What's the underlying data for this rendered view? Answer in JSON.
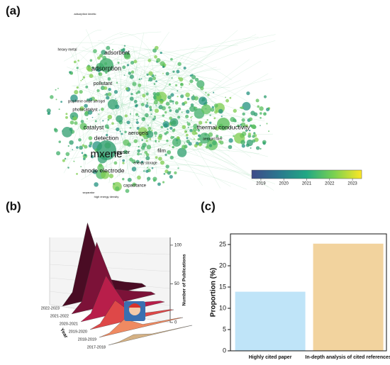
{
  "chart_data": [
    {
      "type": "network",
      "panel": "(a)",
      "node_labels": [
        "mxene",
        "adsorption",
        "adsorbent",
        "pollutant",
        "photocatalyst",
        "graphene oxide aerogel",
        "catalyst",
        "detection",
        "sensor",
        "aerogels",
        "film",
        "energy storage",
        "anode electrode",
        "capacitance",
        "thermal conductivity",
        "aerogel fiber",
        "heavy metal",
        "adsorption kinetic",
        "separator",
        "high energy density"
      ],
      "colorbar": {
        "lim": [
          2018.6,
          2023.4
        ],
        "ticks": [
          2019,
          2020,
          2021,
          2022,
          2023
        ],
        "colors": [
          "#3e4a89",
          "#2a788e",
          "#22a884",
          "#7ad151",
          "#fde725"
        ]
      }
    },
    {
      "type": "area3d",
      "panel": "(b)",
      "categories": [
        "2022-2023",
        "2021-2022",
        "2020-2021",
        "2019-2020",
        "2018-2019",
        "2017-2018"
      ],
      "values": [
        100,
        85,
        52,
        30,
        16,
        6
      ],
      "colors": [
        "#4a0c24",
        "#7c1238",
        "#b81e4a",
        "#de4848",
        "#ef8a62",
        "#d4b184"
      ],
      "zlim": [
        0,
        110
      ],
      "zticks": [
        0,
        50,
        100
      ],
      "xlabel": "Year",
      "zlabel": "Number of Publications"
    },
    {
      "type": "bar",
      "panel": "(c)",
      "categories": [
        "Highly cited paper",
        "In-depth analysis of cited references"
      ],
      "values": [
        13.9,
        25.2
      ],
      "colors": [
        "#bfe4f8",
        "#f2d39e"
      ],
      "ylim": [
        0,
        27.5
      ],
      "yticks": [
        0,
        5,
        10,
        15,
        20,
        25
      ],
      "ylabel": "Proportion (%)"
    }
  ]
}
